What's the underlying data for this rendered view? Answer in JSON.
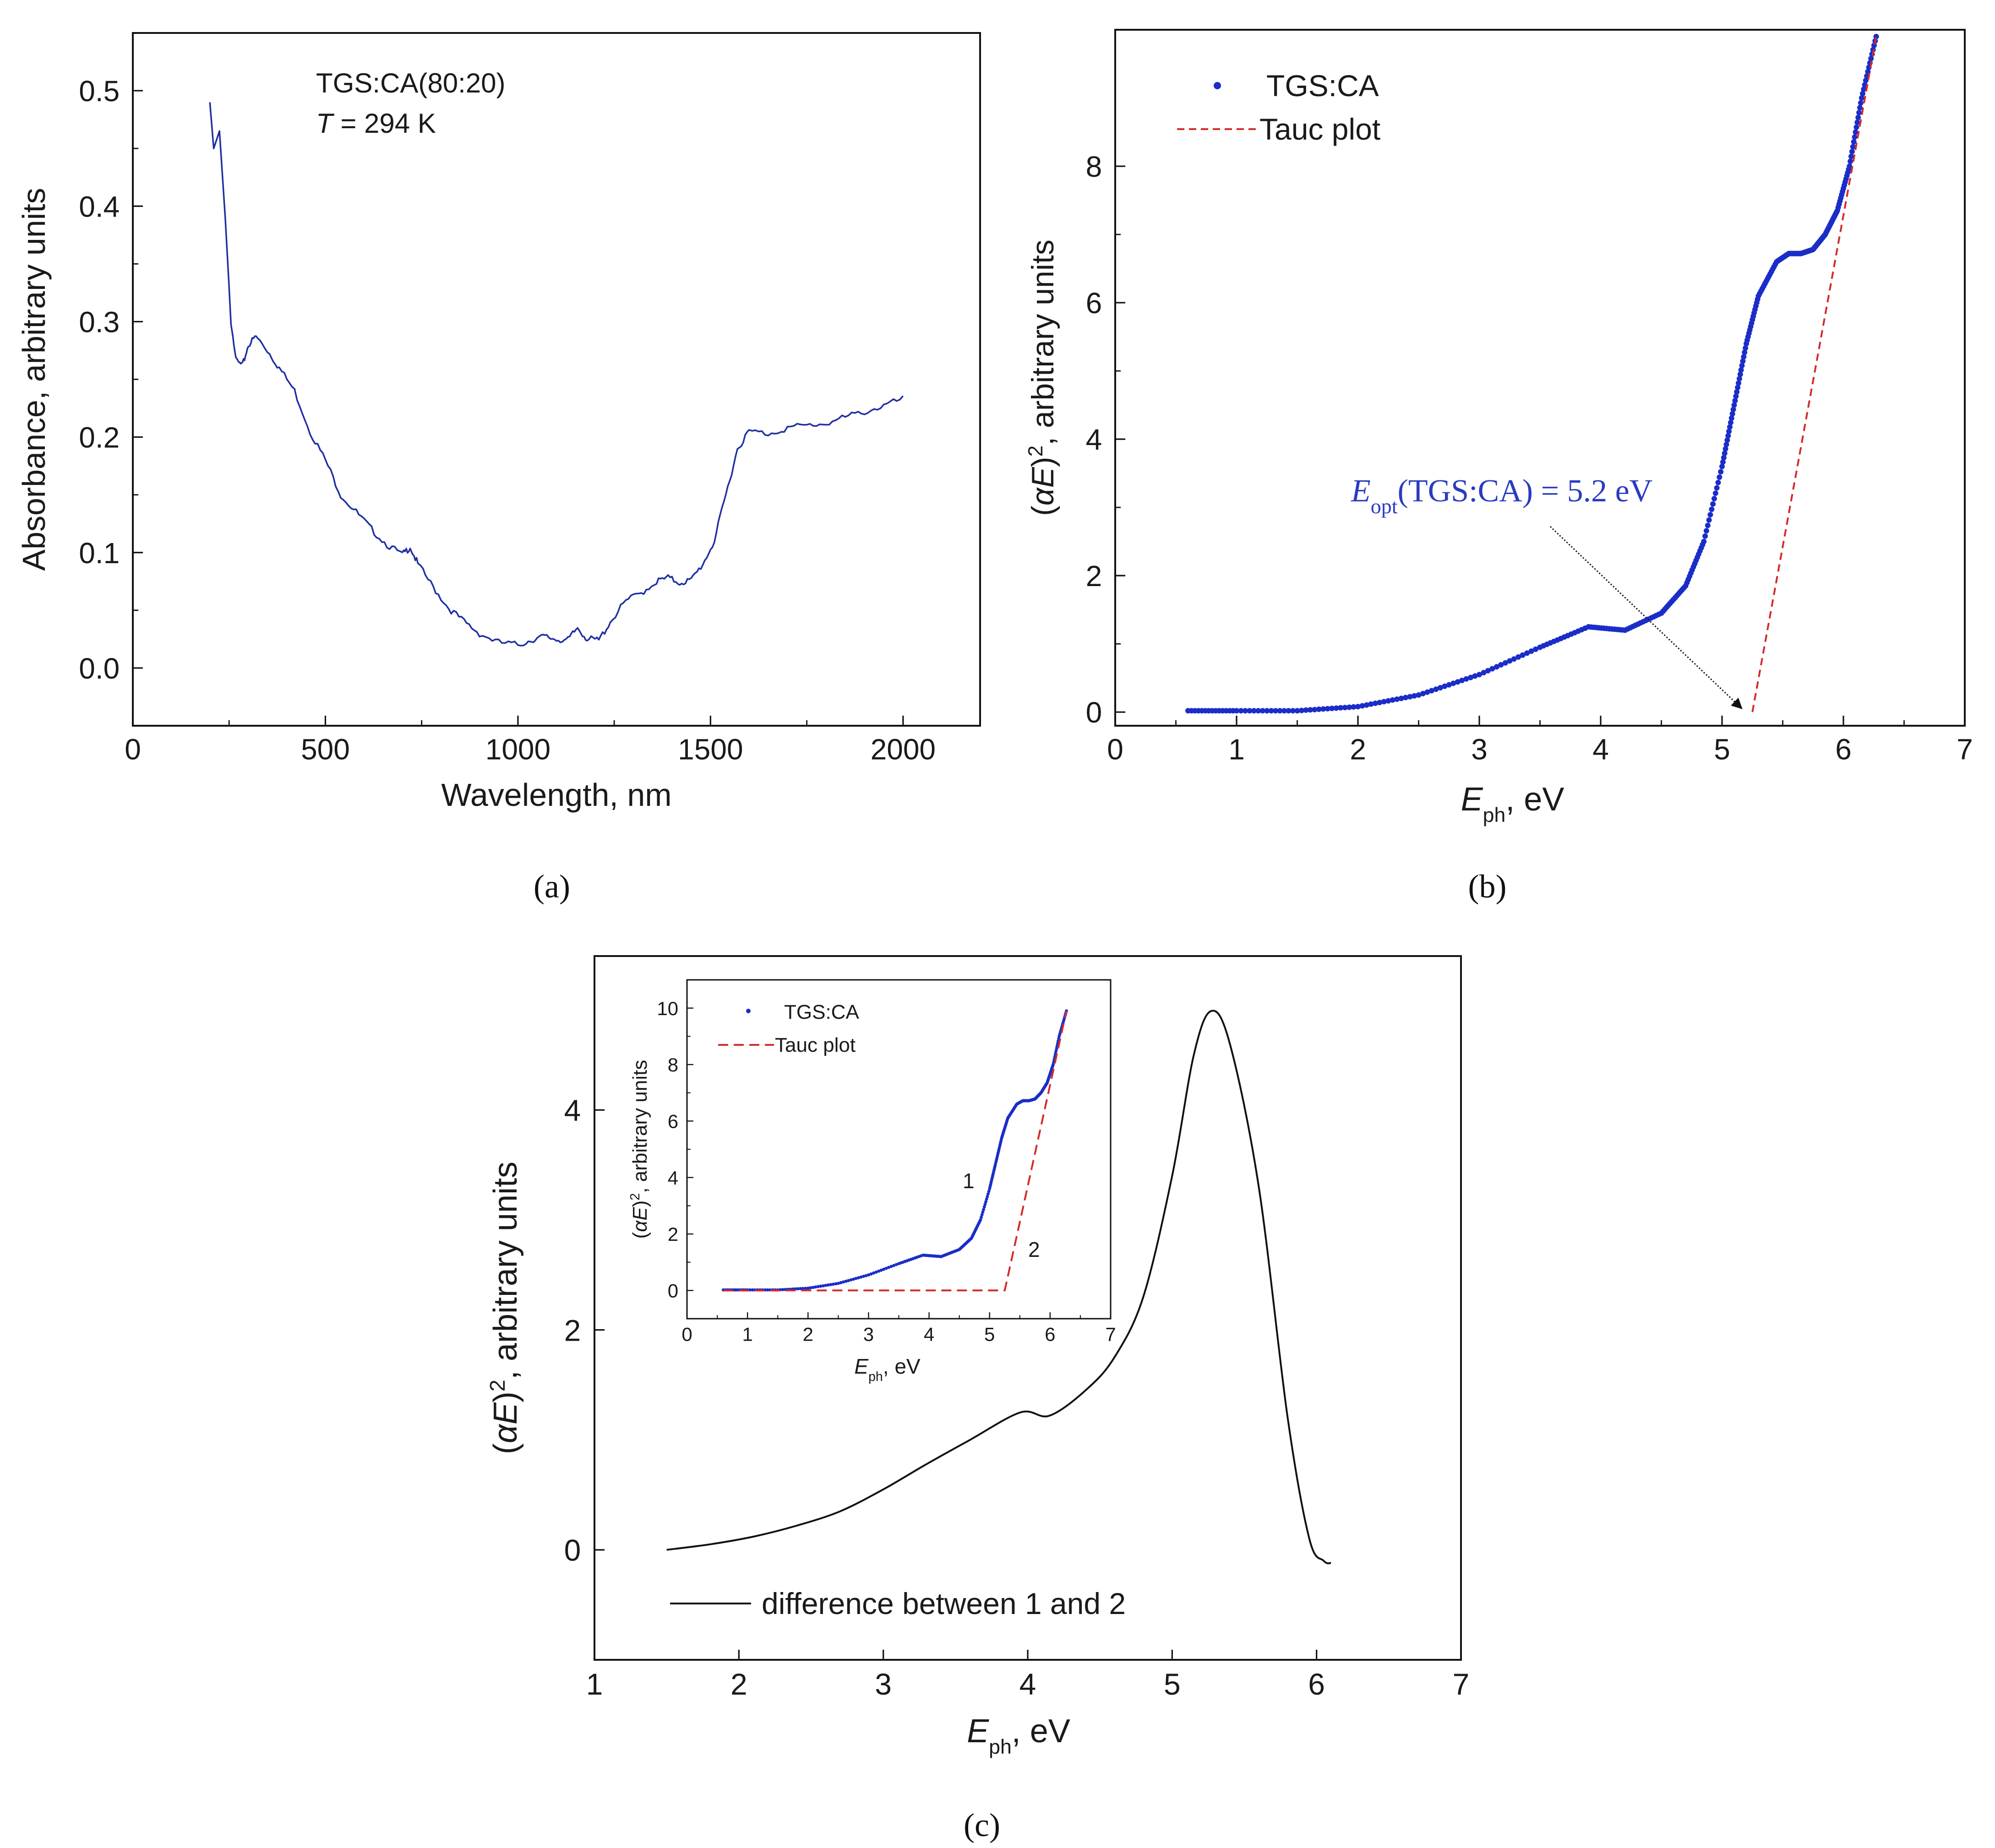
{
  "figure": {
    "panel_labels": [
      "(a)",
      "(b)",
      "(c)"
    ],
    "colors": {
      "absorbance": "#1f2fa0",
      "tgs_points": "#1a2dc8",
      "tauc": "#d42a2a",
      "difference": "#111111",
      "annotation": "#2a3bc0"
    }
  },
  "chart_data": [
    {
      "id": "a",
      "type": "line",
      "annotation_lines": [
        "TGS:CA(80:20)",
        "T = 294 K"
      ],
      "annotation_T_symbol": "T",
      "annotation_T_rest": " = 294 K",
      "xlabel": "Wavelength, nm",
      "ylabel": "Absorbance, arbitrary units",
      "xlim": [
        0,
        2200
      ],
      "ylim": [
        -0.05,
        0.55
      ],
      "xticks": [
        0,
        500,
        1000,
        1500,
        2000
      ],
      "yticks": [
        0.0,
        0.1,
        0.2,
        0.3,
        0.4,
        0.5
      ],
      "ytick_labels": [
        "0.0",
        "0.1",
        "0.2",
        "0.3",
        "0.4",
        "0.5"
      ],
      "series": [
        {
          "name": "Absorbance",
          "x": [
            200,
            210,
            225,
            240,
            255,
            270,
            285,
            300,
            320,
            350,
            380,
            420,
            460,
            500,
            540,
            580,
            620,
            660,
            700,
            720,
            740,
            780,
            820,
            860,
            900,
            950,
            1000,
            1040,
            1070,
            1100,
            1130,
            1155,
            1180,
            1210,
            1240,
            1280,
            1320,
            1360,
            1390,
            1420,
            1450,
            1480,
            1510,
            1540,
            1570,
            1600,
            1650,
            1700,
            1750,
            1800,
            1850,
            1900,
            1950,
            2000
          ],
          "y": [
            0.49,
            0.45,
            0.465,
            0.39,
            0.3,
            0.265,
            0.262,
            0.28,
            0.287,
            0.275,
            0.26,
            0.24,
            0.205,
            0.18,
            0.15,
            0.135,
            0.12,
            0.107,
            0.098,
            0.105,
            0.09,
            0.07,
            0.052,
            0.04,
            0.03,
            0.022,
            0.02,
            0.025,
            0.027,
            0.025,
            0.024,
            0.035,
            0.025,
            0.024,
            0.04,
            0.058,
            0.065,
            0.075,
            0.078,
            0.074,
            0.076,
            0.09,
            0.11,
            0.15,
            0.19,
            0.205,
            0.203,
            0.208,
            0.21,
            0.212,
            0.217,
            0.222,
            0.227,
            0.233
          ]
        }
      ]
    },
    {
      "id": "b",
      "type": "scatter",
      "xlabel_symbol": "E",
      "xlabel_sub": "ph",
      "xlabel_rest": ", eV",
      "ylabel_prefix": "(",
      "ylabel_symbol": "αE",
      "ylabel_mid": ")",
      "ylabel_sup": "2",
      "ylabel_rest": ", arbitrary units",
      "xlim": [
        0,
        7
      ],
      "ylim": [
        -0.2,
        10
      ],
      "xticks": [
        0,
        1,
        2,
        3,
        4,
        5,
        6,
        7
      ],
      "yticks": [
        0,
        2,
        4,
        6,
        8
      ],
      "legend": [
        "TGS:CA",
        "Tauc plot"
      ],
      "annotation_symbol": "E",
      "annotation_sub": "opt",
      "annotation_rest": "(TGS:CA) = 5.2 eV",
      "annotation_arrow_target": [
        5.2,
        0.0
      ],
      "series": [
        {
          "name": "TGS:CA",
          "style": "points",
          "x": [
            0.6,
            1.0,
            1.5,
            2.0,
            2.5,
            3.0,
            3.5,
            3.9,
            4.2,
            4.5,
            4.7,
            4.85,
            5.0,
            5.1,
            5.2,
            5.3,
            5.45,
            5.55,
            5.65,
            5.75,
            5.85,
            5.95,
            6.05,
            6.15,
            6.27
          ],
          "y": [
            0.02,
            0.02,
            0.02,
            0.08,
            0.25,
            0.55,
            0.95,
            1.25,
            1.2,
            1.45,
            1.85,
            2.5,
            3.6,
            4.5,
            5.4,
            6.1,
            6.6,
            6.72,
            6.72,
            6.78,
            7.0,
            7.35,
            8.0,
            9.0,
            9.9
          ]
        },
        {
          "name": "Tauc plot",
          "style": "dashed",
          "x": [
            5.25,
            6.27
          ],
          "y": [
            0.0,
            9.9
          ]
        }
      ]
    },
    {
      "id": "c",
      "type": "line",
      "xlabel_symbol": "E",
      "xlabel_sub": "ph",
      "xlabel_rest": ", eV",
      "ylabel_prefix": "(",
      "ylabel_symbol": "αE",
      "ylabel_mid": ")",
      "ylabel_sup": "2",
      "ylabel_rest": ", arbitrary units",
      "xlim": [
        1,
        7
      ],
      "ylim": [
        -1,
        5.4
      ],
      "xticks": [
        1,
        2,
        3,
        4,
        5,
        6,
        7
      ],
      "yticks": [
        0,
        2,
        4
      ],
      "legend": [
        "difference between 1 and 2"
      ],
      "series": [
        {
          "name": "difference between 1 and 2",
          "x": [
            1.5,
            1.8,
            2.1,
            2.4,
            2.7,
            3.0,
            3.3,
            3.6,
            3.95,
            4.15,
            4.4,
            4.6,
            4.8,
            5.0,
            5.15,
            5.27,
            5.4,
            5.6,
            5.8,
            5.95,
            6.05,
            6.1
          ],
          "y": [
            0.0,
            0.05,
            0.12,
            0.22,
            0.35,
            0.55,
            0.78,
            1.0,
            1.25,
            1.22,
            1.45,
            1.75,
            2.3,
            3.4,
            4.5,
            4.9,
            4.6,
            3.3,
            1.2,
            0.1,
            -0.1,
            -0.12
          ]
        }
      ],
      "inset": {
        "type": "scatter",
        "xlabel_symbol": "E",
        "xlabel_sub": "ph",
        "xlabel_rest": ", eV",
        "ylabel_prefix": "(",
        "ylabel_symbol": "αE",
        "ylabel_mid": ")",
        "ylabel_sup": "2",
        "ylabel_rest": ", arbitrary units",
        "xlim": [
          0,
          7
        ],
        "ylim": [
          -1,
          11
        ],
        "xticks": [
          0,
          1,
          2,
          3,
          4,
          5,
          6,
          7
        ],
        "yticks": [
          0,
          2,
          4,
          6,
          8,
          10
        ],
        "legend": [
          "TGS:CA",
          "Tauc plot"
        ],
        "curve_labels": [
          "1",
          "2"
        ],
        "series": [
          {
            "name": "TGS:CA",
            "style": "points",
            "x": [
              0.6,
              1.0,
              1.5,
              2.0,
              2.5,
              3.0,
              3.5,
              3.9,
              4.2,
              4.5,
              4.7,
              4.85,
              5.0,
              5.1,
              5.2,
              5.3,
              5.45,
              5.55,
              5.65,
              5.75,
              5.85,
              5.95,
              6.05,
              6.15,
              6.27
            ],
            "y": [
              0.02,
              0.02,
              0.02,
              0.08,
              0.25,
              0.55,
              0.95,
              1.25,
              1.2,
              1.45,
              1.85,
              2.5,
              3.6,
              4.5,
              5.4,
              6.1,
              6.6,
              6.72,
              6.72,
              6.78,
              7.0,
              7.35,
              8.0,
              9.0,
              9.9
            ]
          },
          {
            "name": "Tauc plot",
            "style": "dashed",
            "x": [
              0.6,
              5.2,
              5.25,
              6.27
            ],
            "y": [
              0.0,
              0.0,
              0.0,
              9.9
            ]
          }
        ]
      }
    }
  ]
}
